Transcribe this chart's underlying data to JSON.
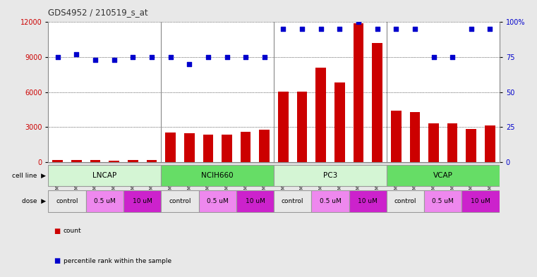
{
  "title": "GDS4952 / 210519_s_at",
  "samples": [
    "GSM1359772",
    "GSM1359773",
    "GSM1359774",
    "GSM1359775",
    "GSM1359776",
    "GSM1359777",
    "GSM1359760",
    "GSM1359761",
    "GSM1359762",
    "GSM1359763",
    "GSM1359764",
    "GSM1359765",
    "GSM1359778",
    "GSM1359779",
    "GSM1359780",
    "GSM1359781",
    "GSM1359782",
    "GSM1359783",
    "GSM1359766",
    "GSM1359767",
    "GSM1359768",
    "GSM1359769",
    "GSM1359770",
    "GSM1359771"
  ],
  "counts": [
    200,
    200,
    150,
    130,
    200,
    150,
    2550,
    2450,
    2350,
    2350,
    2600,
    2800,
    6050,
    6050,
    8100,
    6800,
    11900,
    10200,
    4400,
    4300,
    3300,
    3300,
    2850,
    3150
  ],
  "percentiles": [
    75,
    77,
    73,
    73,
    75,
    75,
    75,
    70,
    75,
    75,
    75,
    75,
    95,
    95,
    95,
    95,
    100,
    95,
    95,
    95,
    75,
    75,
    95,
    95
  ],
  "cell_lines": [
    "LNCAP",
    "NCIH660",
    "PC3",
    "VCAP"
  ],
  "cell_colors": [
    "#d4f5d4",
    "#66dd66",
    "#d4f5d4",
    "#66dd66"
  ],
  "dose_labels_per_group": [
    "control",
    "0.5 uM",
    "10 uM"
  ],
  "dose_colors": [
    "#e8e8e8",
    "#ee88ee",
    "#cc22cc"
  ],
  "bar_color": "#cc0000",
  "dot_color": "#0000cc",
  "left_ylim": [
    0,
    12000
  ],
  "right_ylim": [
    0,
    100
  ],
  "left_yticks": [
    0,
    3000,
    6000,
    9000,
    12000
  ],
  "right_yticks": [
    0,
    25,
    50,
    75,
    100
  ],
  "bg_color": "#e8e8e8",
  "plot_bg": "#ffffff",
  "tick_label_bg": "#c8c8c8"
}
